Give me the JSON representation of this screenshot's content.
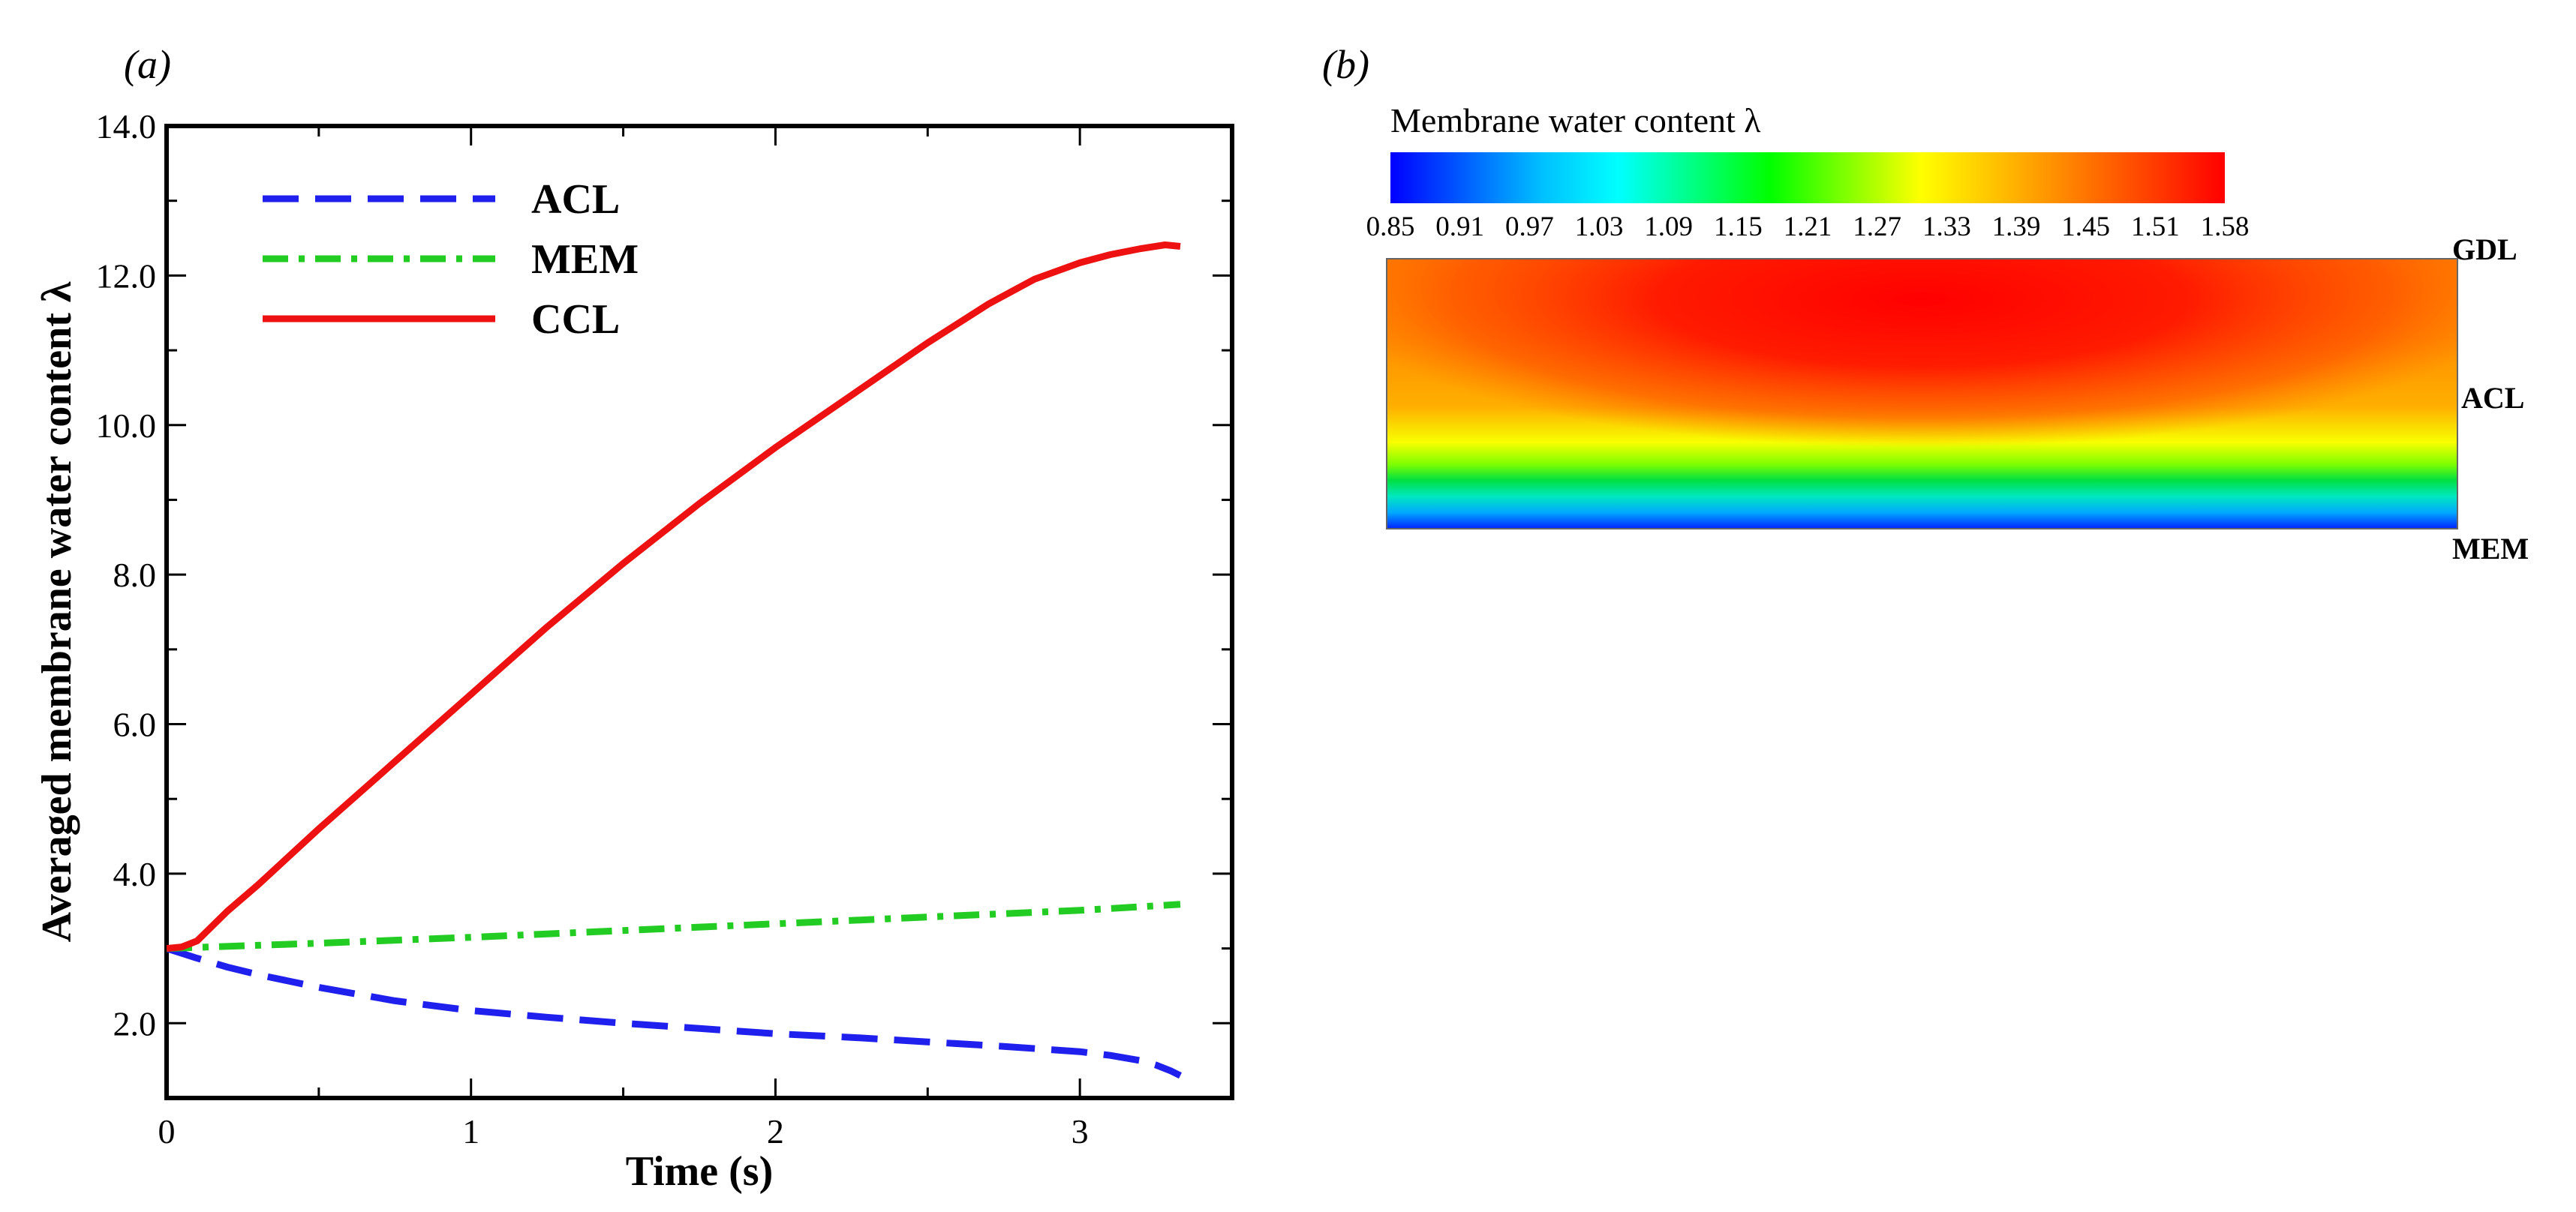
{
  "panel_a_label": "(a)",
  "panel_b_label": "(b)",
  "chart_data": [
    {
      "type": "line",
      "title": "",
      "xlabel": "Time (s)",
      "ylabel": "Averaged membrane water content λ",
      "xlim": [
        0,
        3.5
      ],
      "ylim": [
        1.0,
        14.0
      ],
      "x_ticks": [
        0,
        1,
        2,
        3
      ],
      "x_tick_labels": [
        "0",
        "1",
        "2",
        "3"
      ],
      "y_ticks": [
        2,
        4,
        6,
        8,
        10,
        12,
        14
      ],
      "y_tick_labels": [
        "2.0",
        "4.0",
        "6.0",
        "8.0",
        "10.0",
        "12.0",
        "14.0"
      ],
      "legend_position": "top-left",
      "series": [
        {
          "name": "ACL",
          "color": "#2020ee",
          "style": "dashed",
          "x": [
            0,
            0.1,
            0.2,
            0.3,
            0.5,
            0.75,
            1.0,
            1.25,
            1.5,
            1.75,
            2.0,
            2.25,
            2.5,
            2.75,
            3.0,
            3.1,
            3.2,
            3.25,
            3.3,
            3.33
          ],
          "y": [
            3.0,
            2.87,
            2.75,
            2.65,
            2.48,
            2.3,
            2.17,
            2.08,
            2.0,
            1.93,
            1.86,
            1.81,
            1.75,
            1.69,
            1.62,
            1.57,
            1.5,
            1.44,
            1.36,
            1.3
          ]
        },
        {
          "name": "MEM",
          "color": "#22cc22",
          "style": "dashdot",
          "x": [
            0,
            0.5,
            1.0,
            1.5,
            2.0,
            2.5,
            3.0,
            3.33
          ],
          "y": [
            3.0,
            3.07,
            3.15,
            3.24,
            3.33,
            3.42,
            3.51,
            3.59
          ]
        },
        {
          "name": "CCL",
          "color": "#ee1111",
          "style": "solid",
          "x": [
            0,
            0.05,
            0.1,
            0.15,
            0.2,
            0.3,
            0.5,
            0.75,
            1.0,
            1.25,
            1.5,
            1.75,
            2.0,
            2.25,
            2.5,
            2.7,
            2.85,
            3.0,
            3.1,
            3.2,
            3.28,
            3.33
          ],
          "y": [
            3.0,
            3.02,
            3.1,
            3.3,
            3.5,
            3.85,
            4.6,
            5.5,
            6.4,
            7.3,
            8.15,
            8.95,
            9.7,
            10.4,
            11.1,
            11.62,
            11.95,
            12.17,
            12.28,
            12.36,
            12.41,
            12.39
          ]
        }
      ]
    },
    {
      "type": "heatmap",
      "title": "Membrane water content λ",
      "colorbar_ticks": [
        "0.85",
        "0.91",
        "0.97",
        "1.03",
        "1.09",
        "1.15",
        "1.21",
        "1.27",
        "1.33",
        "1.39",
        "1.45",
        "1.51",
        "1.58"
      ],
      "colorbar_range": [
        0.85,
        1.58
      ],
      "colorbar_colors": [
        "#0000ff",
        "#0060ff",
        "#00c0ff",
        "#00ffff",
        "#00ff80",
        "#00ff00",
        "#80ff00",
        "#ffff00",
        "#ffc000",
        "#ff8000",
        "#ff4000",
        "#ff0000"
      ],
      "layer_labels": [
        "GDL",
        "ACL",
        "MEM"
      ]
    }
  ]
}
